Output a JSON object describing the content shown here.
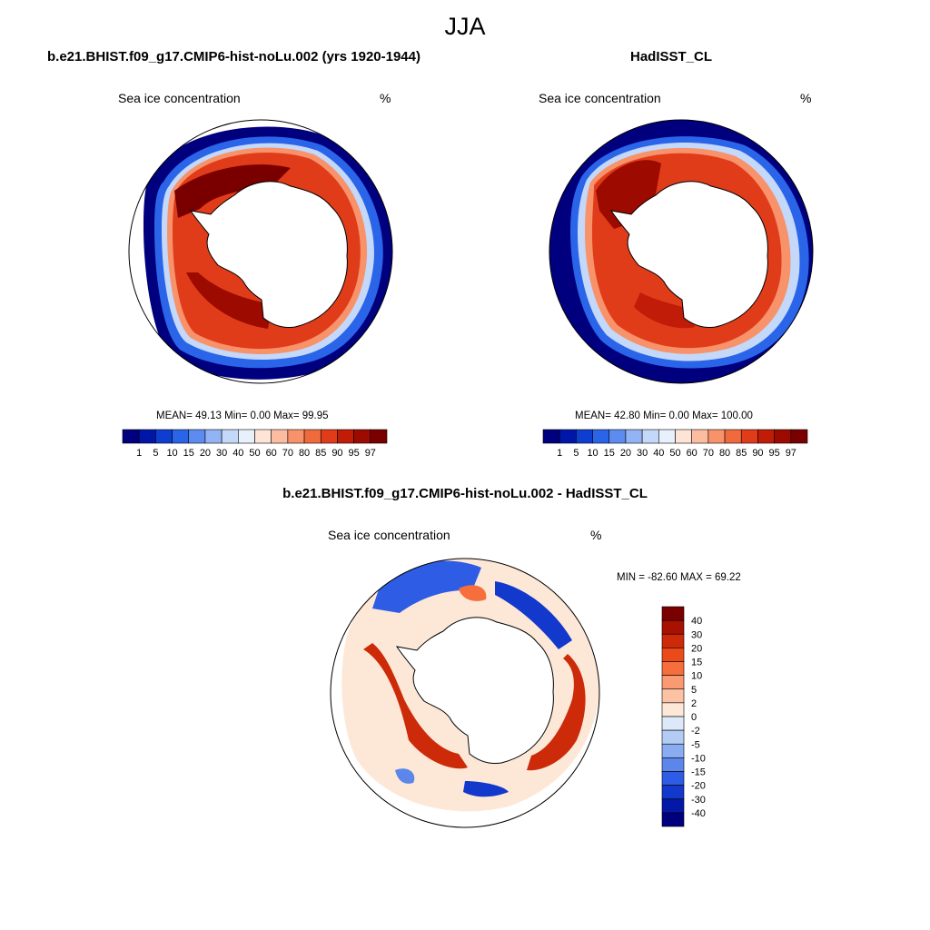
{
  "title": "JJA",
  "panels": [
    {
      "title": "b.e21.BHIST.f09_g17.CMIP6-hist-noLu.002 (yrs 1920-1944)",
      "left_label": "Sea ice concentration",
      "right_label": "%",
      "stats": "MEAN=  49.13  Min=    0.00  Max=  99.95"
    },
    {
      "title": "HadISST_CL",
      "left_label": "Sea ice concentration",
      "right_label": "%",
      "stats": "MEAN=  42.80  Min=    0.00  Max= 100.00"
    },
    {
      "title": "b.e21.BHIST.f09_g17.CMIP6-hist-noLu.002 - HadISST_CL",
      "left_label": "Sea ice concentration",
      "right_label": "%",
      "stats": "MIN = -82.60 MAX =  69.22"
    }
  ],
  "chart_data": [
    {
      "type": "heatmap",
      "projection": "south-polar-stereographic",
      "title": "b.e21.BHIST.f09_g17.CMIP6-hist-noLu.002 (yrs 1920-1944)",
      "variable": "Sea ice concentration",
      "units": "%",
      "mean": 49.13,
      "min": 0.0,
      "max": 99.95,
      "colorbar_levels": [
        "1",
        "5",
        "10",
        "15",
        "20",
        "30",
        "40",
        "50",
        "60",
        "70",
        "80",
        "85",
        "90",
        "95",
        "97"
      ],
      "colorbar_colors": [
        "#00007f",
        "#0016a8",
        "#0e3ed0",
        "#2a64e8",
        "#5c8cf0",
        "#93b4f4",
        "#c4d8fa",
        "#e8f0fc",
        "#fde4d6",
        "#fcbca0",
        "#f8926a",
        "#f06a3e",
        "#e03c1a",
        "#c01c08",
        "#9c0a00",
        "#7a0000"
      ],
      "colorbar_position": "bottom"
    },
    {
      "type": "heatmap",
      "projection": "south-polar-stereographic",
      "title": "HadISST_CL",
      "variable": "Sea ice concentration",
      "units": "%",
      "mean": 42.8,
      "min": 0.0,
      "max": 100.0,
      "colorbar_levels": [
        "1",
        "5",
        "10",
        "15",
        "20",
        "30",
        "40",
        "50",
        "60",
        "70",
        "80",
        "85",
        "90",
        "95",
        "97"
      ],
      "colorbar_colors": [
        "#00007f",
        "#0016a8",
        "#0e3ed0",
        "#2a64e8",
        "#5c8cf0",
        "#93b4f4",
        "#c4d8fa",
        "#e8f0fc",
        "#fde4d6",
        "#fcbca0",
        "#f8926a",
        "#f06a3e",
        "#e03c1a",
        "#c01c08",
        "#9c0a00",
        "#7a0000"
      ],
      "colorbar_position": "bottom"
    },
    {
      "type": "heatmap",
      "projection": "south-polar-stereographic",
      "title": "b.e21.BHIST.f09_g17.CMIP6-hist-noLu.002 - HadISST_CL",
      "variable": "Sea ice concentration",
      "units": "%",
      "min": -82.6,
      "max": 69.22,
      "colorbar_levels": [
        "40",
        "30",
        "20",
        "15",
        "10",
        "5",
        "2",
        "0",
        "-2",
        "-5",
        "-10",
        "-15",
        "-20",
        "-30",
        "-40"
      ],
      "colorbar_colors": [
        "#7a0000",
        "#a81000",
        "#cc2a08",
        "#ec4a1a",
        "#f66e3c",
        "#fa9a72",
        "#fcc2a4",
        "#fde8d8",
        "#dde8f8",
        "#b4ccf4",
        "#8aacf0",
        "#5c86ea",
        "#2e5ce4",
        "#1238cc",
        "#0418a8",
        "#00007f"
      ],
      "colorbar_position": "right"
    }
  ]
}
